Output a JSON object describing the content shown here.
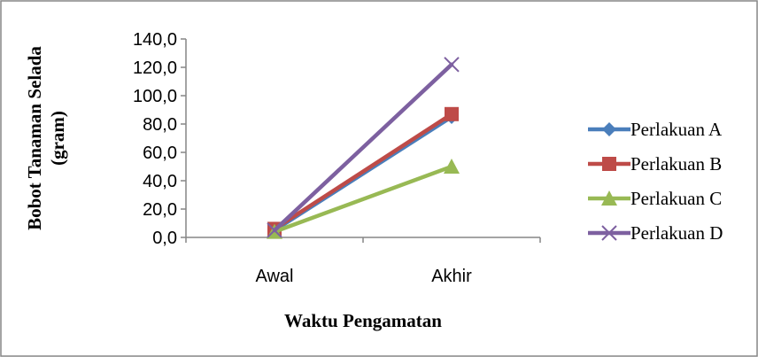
{
  "chart_data": {
    "type": "line",
    "title": "",
    "xlabel": "Waktu Pengamatan",
    "ylabel": [
      "Bobot Tanaman Selada",
      "(gram)"
    ],
    "categories": [
      "Awal",
      "Akhir"
    ],
    "ylim": [
      0,
      140
    ],
    "yticks": [
      "0,0",
      "20,0",
      "40,0",
      "60,0",
      "80,0",
      "100,0",
      "120,0",
      "140,0"
    ],
    "grid": false,
    "legend_position": "right",
    "series": [
      {
        "name": "Perlakuan A",
        "values": [
          5,
          85
        ],
        "color": "#4A7EBB",
        "marker": "diamond"
      },
      {
        "name": "Perlakuan B",
        "values": [
          6,
          87
        ],
        "color": "#BE4B48",
        "marker": "square"
      },
      {
        "name": "Perlakuan C",
        "values": [
          4,
          50
        ],
        "color": "#98B954",
        "marker": "triangle"
      },
      {
        "name": "Perlakuan D",
        "values": [
          5,
          122
        ],
        "color": "#7D60A0",
        "marker": "x"
      }
    ]
  }
}
